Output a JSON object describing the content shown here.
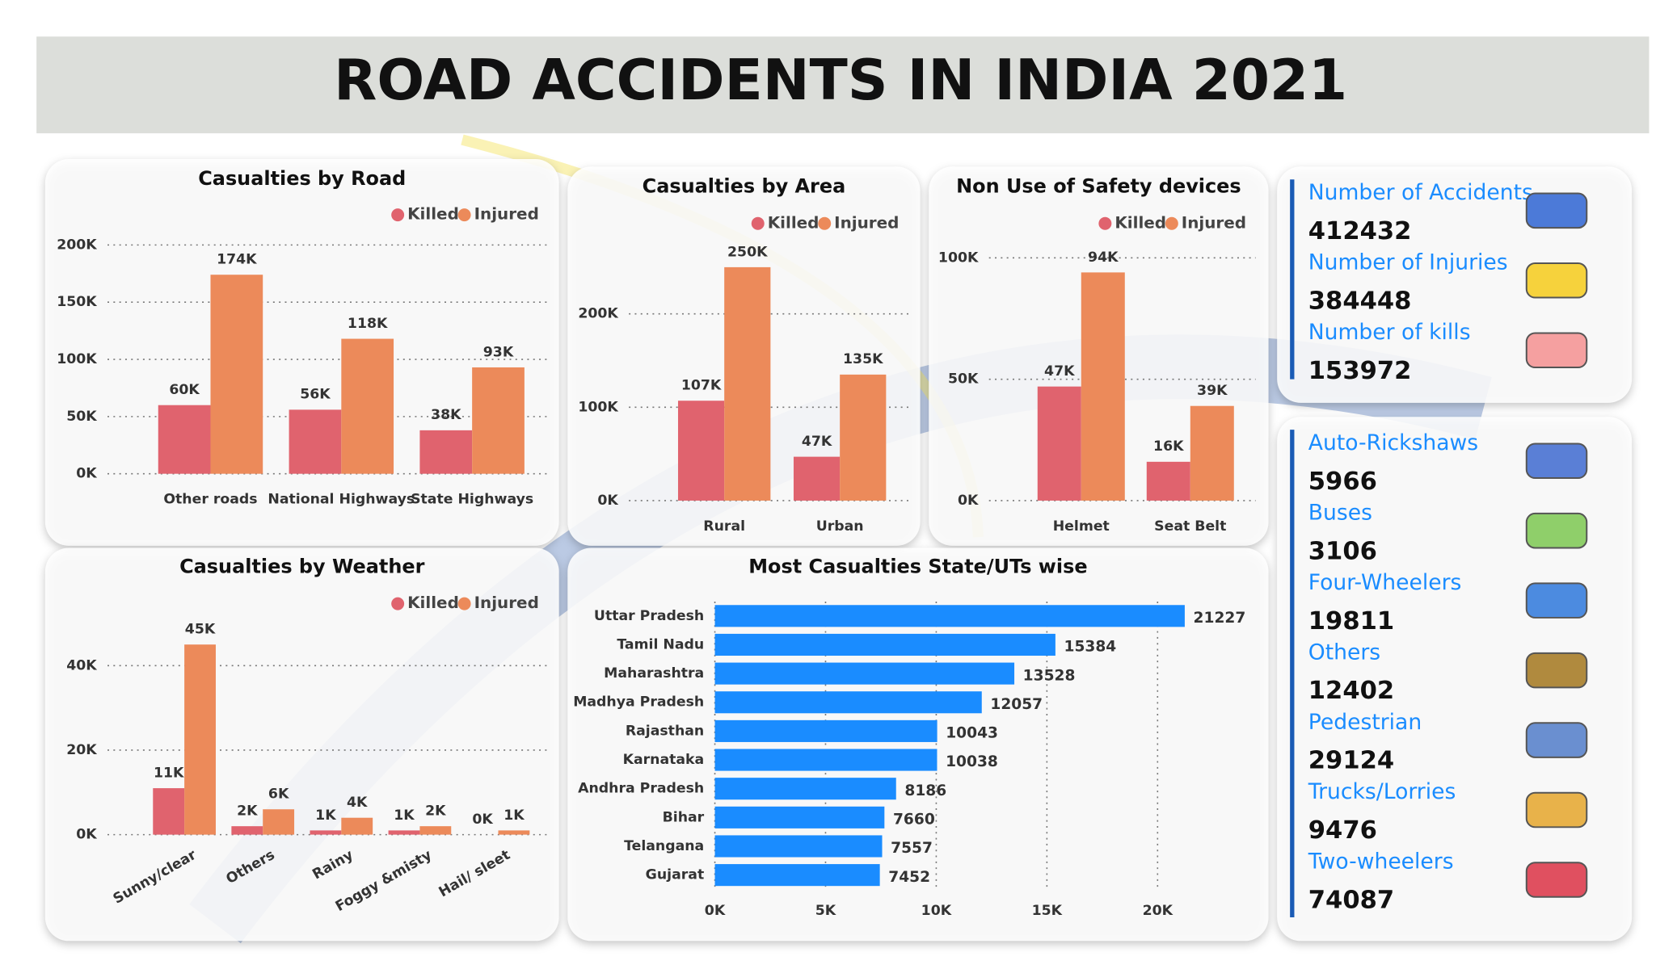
{
  "title": "ROAD ACCIDENTS IN INDIA 2021",
  "chart_data": [
    {
      "type": "bar",
      "title": "Casualties by Road",
      "categories": [
        "Other roads",
        "National Highways",
        "State Highways"
      ],
      "series": [
        {
          "name": "Killed",
          "color": "#e0636e",
          "values": [
            60000,
            56000,
            38000
          ],
          "value_labels": [
            "60K",
            "56K",
            "38K"
          ]
        },
        {
          "name": "Injured",
          "color": "#ec8a5a",
          "values": [
            174000,
            118000,
            93000
          ],
          "value_labels": [
            "174K",
            "118K",
            "93K"
          ]
        }
      ],
      "ylim": [
        0,
        200000
      ],
      "yticks": [
        {
          "value": 0,
          "label": "0K"
        },
        {
          "value": 50000,
          "label": "50K"
        },
        {
          "value": 100000,
          "label": "100K"
        },
        {
          "value": 150000,
          "label": "150K"
        },
        {
          "value": 200000,
          "label": "200K"
        }
      ],
      "grid": true
    },
    {
      "type": "bar",
      "title": "Casualties by Area",
      "categories": [
        "Rural",
        "Urban"
      ],
      "series": [
        {
          "name": "Killed",
          "color": "#e0636e",
          "values": [
            107000,
            47000
          ],
          "value_labels": [
            "107K",
            "47K"
          ]
        },
        {
          "name": "Injured",
          "color": "#ec8a5a",
          "values": [
            250000,
            135000
          ],
          "value_labels": [
            "250K",
            "135K"
          ]
        }
      ],
      "ylim": [
        0,
        260000
      ],
      "yticks": [
        {
          "value": 0,
          "label": "0K"
        },
        {
          "value": 100000,
          "label": "100K"
        },
        {
          "value": 200000,
          "label": "200K"
        }
      ],
      "grid": true
    },
    {
      "type": "bar",
      "title": "Non Use of Safety devices",
      "categories": [
        "Helmet",
        "Seat Belt"
      ],
      "series": [
        {
          "name": "Killed",
          "color": "#e0636e",
          "values": [
            47000,
            16000
          ],
          "value_labels": [
            "47K",
            "16K"
          ]
        },
        {
          "name": "Injured",
          "color": "#ec8a5a",
          "values": [
            94000,
            39000
          ],
          "value_labels": [
            "94K",
            "39K"
          ]
        }
      ],
      "ylim": [
        0,
        100000
      ],
      "yticks": [
        {
          "value": 0,
          "label": "0K"
        },
        {
          "value": 50000,
          "label": "50K"
        },
        {
          "value": 100000,
          "label": "100K"
        }
      ],
      "grid": true
    },
    {
      "type": "bar",
      "title": "Casualties by Weather",
      "categories": [
        "Sunny/clear",
        "Others",
        "Rainy",
        "Foggy &misty",
        "Hail/ sleet"
      ],
      "series": [
        {
          "name": "Killed",
          "color": "#e0636e",
          "values": [
            11000,
            2000,
            1000,
            1000,
            0
          ],
          "value_labels": [
            "11K",
            "2K",
            "1K",
            "1K",
            "0K"
          ]
        },
        {
          "name": "Injured",
          "color": "#ec8a5a",
          "values": [
            45000,
            6000,
            4000,
            2000,
            1000
          ],
          "value_labels": [
            "45K",
            "6K",
            "4K",
            "2K",
            "1K"
          ]
        }
      ],
      "ylim": [
        0,
        45000
      ],
      "yticks": [
        {
          "value": 0,
          "label": "0K"
        },
        {
          "value": 20000,
          "label": "20K"
        },
        {
          "value": 40000,
          "label": "40K"
        }
      ],
      "grid": true
    },
    {
      "type": "hbar",
      "title": "Most Casualties State/UTs wise",
      "categories": [
        "Uttar Pradesh",
        "Tamil Nadu",
        "Maharashtra",
        "Madhya Pradesh",
        "Rajasthan",
        "Karnataka",
        "Andhra Pradesh",
        "Bihar",
        "Telangana",
        "Gujarat"
      ],
      "values": [
        21227,
        15384,
        13528,
        12057,
        10043,
        10038,
        8186,
        7660,
        7557,
        7452
      ],
      "color": "#1a8cff",
      "xlim": [
        0,
        22000
      ],
      "xticks": [
        {
          "value": 0,
          "label": "0K"
        },
        {
          "value": 5000,
          "label": "5K"
        },
        {
          "value": 10000,
          "label": "10K"
        },
        {
          "value": 15000,
          "label": "15K"
        },
        {
          "value": 20000,
          "label": "20K"
        }
      ],
      "grid": true
    }
  ],
  "kpis": [
    {
      "label": "Number of Accidents",
      "value": "412432"
    },
    {
      "label": "Number of Injuries",
      "value": "384448"
    },
    {
      "label": "Number of kills",
      "value": "153972"
    }
  ],
  "vehicles": [
    {
      "label": "Auto-Rickshaws",
      "value": "5966"
    },
    {
      "label": "Buses",
      "value": "3106"
    },
    {
      "label": "Four-Wheelers",
      "value": "19811"
    },
    {
      "label": "Others",
      "value": "12402"
    },
    {
      "label": "Pedestrian",
      "value": "29124"
    },
    {
      "label": "Trucks/Lorries",
      "value": "9476"
    },
    {
      "label": "Two-wheelers",
      "value": "74087"
    }
  ]
}
